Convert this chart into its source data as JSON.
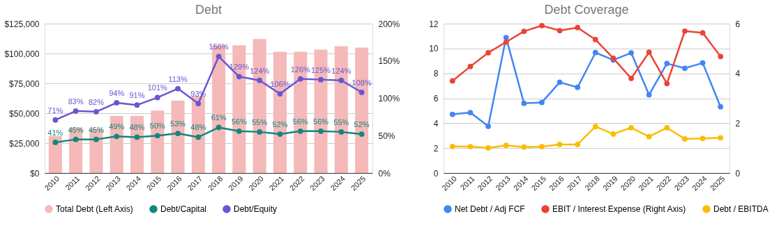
{
  "chart_data": [
    {
      "type": "bar",
      "title": "Debt",
      "categories": [
        "2010",
        "2011",
        "2012",
        "2013",
        "2014",
        "2015",
        "2016",
        "2017",
        "2018",
        "2019",
        "2020",
        "2021",
        "2022",
        "2023",
        "2024",
        "2025"
      ],
      "series": [
        {
          "name": "Total Debt (Left Axis)",
          "type": "bar",
          "color": "#f4b9b8",
          "values": [
            31000,
            37800,
            37000,
            47800,
            47800,
            52200,
            60600,
            64400,
            106900,
            106900,
            112000,
            101500,
            101500,
            103200,
            106100,
            105000
          ]
        },
        {
          "name": "Debt/Capital",
          "type": "line",
          "axis": "y2",
          "color": "#12877f",
          "values": [
            41,
            45,
            45,
            49,
            48,
            50,
            53,
            48,
            61,
            56,
            55,
            52,
            56,
            56,
            55,
            52
          ],
          "value_labels": [
            "41%",
            "45%",
            "45%",
            "49%",
            "48%",
            "50%",
            "53%",
            "48%",
            "61%",
            "56%",
            "55%",
            "52%",
            "56%",
            "56%",
            "55%",
            "52%"
          ]
        },
        {
          "name": "Debt/Equity",
          "type": "line",
          "axis": "y2",
          "color": "#6a55d1",
          "values": [
            71,
            83,
            82,
            94,
            91,
            101,
            113,
            93,
            156,
            129,
            124,
            106,
            126,
            125,
            124,
            108
          ],
          "value_labels": [
            "71%",
            "83%",
            "82%",
            "94%",
            "91%",
            "101%",
            "113%",
            "93%",
            "156%",
            "129%",
            "124%",
            "106%",
            "126%",
            "125%",
            "124%",
            "108%"
          ]
        }
      ],
      "ylim": [
        0,
        125000
      ],
      "yticks": [
        {
          "value": 0,
          "label": "$0"
        },
        {
          "value": 25000,
          "label": "$25,000"
        },
        {
          "value": 50000,
          "label": "$50,000"
        },
        {
          "value": 75000,
          "label": "$75,000"
        },
        {
          "value": 100000,
          "label": "$100,000"
        },
        {
          "value": 125000,
          "label": "$125,000"
        }
      ],
      "y2lim": [
        0,
        200
      ],
      "y2ticks": [
        {
          "value": 0,
          "label": "0%"
        },
        {
          "value": 50,
          "label": "50%"
        },
        {
          "value": 100,
          "label": "100%"
        },
        {
          "value": 150,
          "label": "150%"
        },
        {
          "value": 200,
          "label": "200%"
        }
      ],
      "grid": "y",
      "legend": "bottom",
      "marker": "circle",
      "line_style": "solid"
    },
    {
      "type": "line",
      "title": "Debt Coverage",
      "categories": [
        "2010",
        "2011",
        "2012",
        "2013",
        "2014",
        "2015",
        "2016",
        "2017",
        "2018",
        "2019",
        "2020",
        "2021",
        "2022",
        "2023",
        "2024",
        "2025"
      ],
      "series": [
        {
          "name": "Net Debt / Adj FCF",
          "color": "#4285f4",
          "values": [
            4.71,
            4.85,
            3.75,
            10.88,
            5.6,
            5.67,
            7.29,
            6.88,
            9.67,
            9.08,
            9.65,
            6.28,
            8.8,
            8.41,
            8.84,
            5.32
          ]
        },
        {
          "name": "EBIT / Interest Expense (Right Axis)",
          "axis": "y2",
          "color": "#ea4335",
          "values": [
            3.7,
            4.28,
            4.83,
            5.26,
            5.69,
            5.92,
            5.72,
            5.84,
            5.36,
            4.61,
            3.8,
            4.85,
            3.59,
            5.7,
            5.63,
            4.68
          ]
        },
        {
          "name": "Debt / EBITDA",
          "color": "#fbbc04",
          "values": [
            2.13,
            2.12,
            2.01,
            2.22,
            2.08,
            2.12,
            2.29,
            2.29,
            3.73,
            3.13,
            3.64,
            2.92,
            3.63,
            2.74,
            2.77,
            2.83
          ]
        }
      ],
      "ylim": [
        0,
        12
      ],
      "yticks": [
        0,
        2,
        4,
        6,
        8,
        10,
        12
      ],
      "y2lim": [
        0,
        6
      ],
      "y2ticks": [
        0,
        2,
        4,
        6
      ],
      "grid": "y",
      "legend": "bottom",
      "marker": "circle",
      "line_style": "solid"
    }
  ]
}
